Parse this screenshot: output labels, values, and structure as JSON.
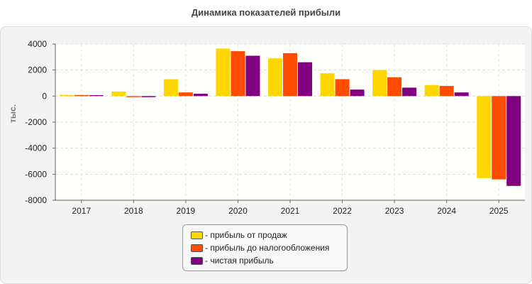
{
  "chart_data": {
    "type": "bar",
    "title": "Динамика показателей прибыли",
    "ylabel": "тыс.",
    "xlabel": "",
    "ylim": [
      -8000,
      4000
    ],
    "yticks": [
      4000,
      2000,
      0,
      -2000,
      -4000,
      -6000,
      -8000
    ],
    "categories": [
      "2017",
      "2018",
      "2019",
      "2020",
      "2021",
      "2022",
      "2023",
      "2024",
      "2025"
    ],
    "series": [
      {
        "name": "- прибыль от продаж",
        "color": "#ffd700",
        "values": [
          90,
          350,
          1300,
          3650,
          2900,
          1750,
          2000,
          850,
          -6300
        ]
      },
      {
        "name": "- прибыль до налогообложения",
        "color": "#ff4c00",
        "values": [
          80,
          -80,
          280,
          3450,
          3300,
          1300,
          1450,
          780,
          -6400
        ]
      },
      {
        "name": "- чистая прибыль",
        "color": "#800080",
        "values": [
          70,
          -80,
          180,
          3100,
          2600,
          500,
          650,
          280,
          -6900
        ]
      }
    ],
    "grid": true,
    "legend_position": "bottom"
  }
}
